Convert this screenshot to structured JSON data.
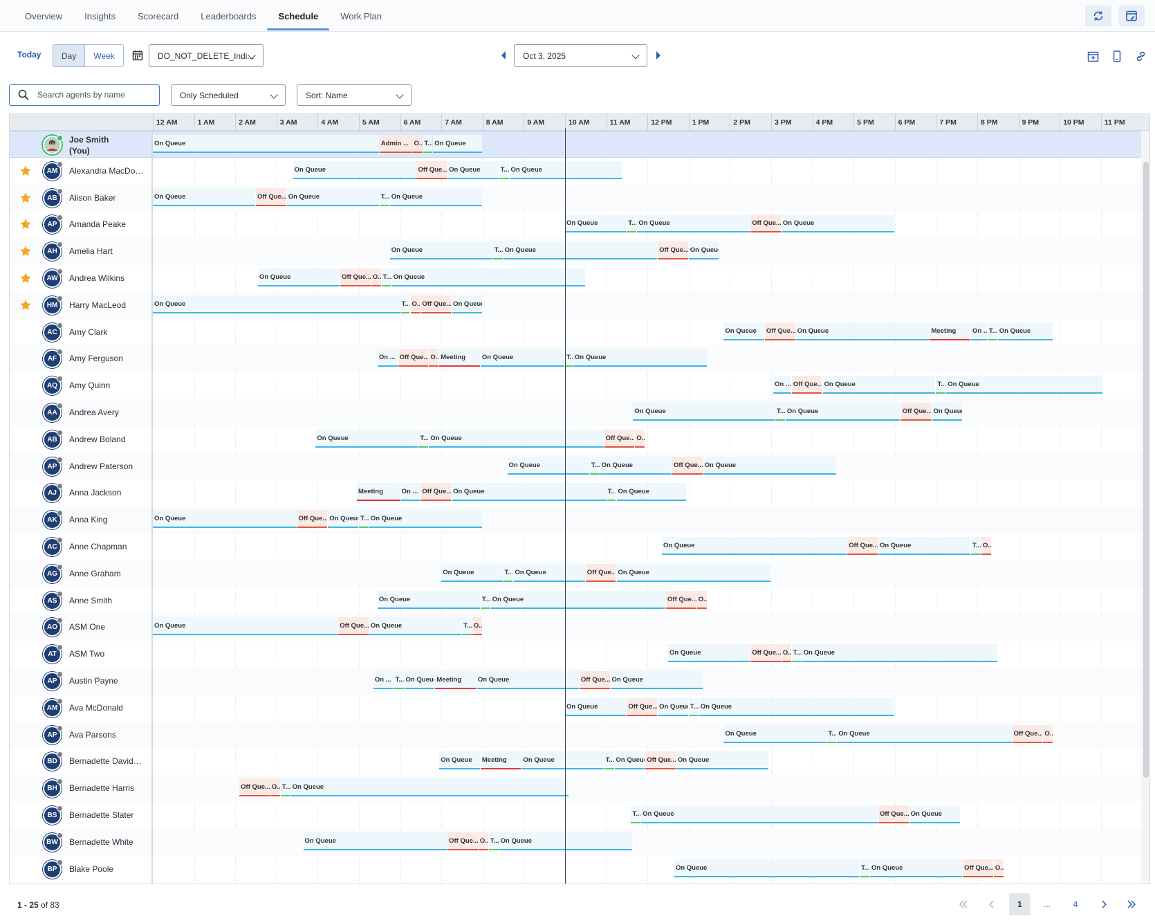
{
  "tabs": [
    {
      "label": "Overview"
    },
    {
      "label": "Insights"
    },
    {
      "label": "Scorecard"
    },
    {
      "label": "Leaderboards"
    },
    {
      "label": "Schedule",
      "active": true
    },
    {
      "label": "Work Plan"
    }
  ],
  "toolbar": {
    "today": "Today",
    "view_day": "Day",
    "view_week": "Week",
    "management_unit": "DO_NOT_DELETE_Indi...",
    "date": "Oct 3, 2025"
  },
  "filters": {
    "search_placeholder": "Search agents by name",
    "scheduled_filter": "Only Scheduled",
    "sort": "Sort: Name"
  },
  "hours": [
    "12 AM",
    "1 AM",
    "2 AM",
    "3 AM",
    "4 AM",
    "5 AM",
    "6 AM",
    "7 AM",
    "8 AM",
    "9 AM",
    "10 AM",
    "11 AM",
    "12 PM",
    "1 PM",
    "2 PM",
    "3 PM",
    "4 PM",
    "5 PM",
    "6 PM",
    "7 PM",
    "8 PM",
    "9 PM",
    "10 PM",
    "11 PM"
  ],
  "current_time_hour": 10.0,
  "activity_labels": {
    "q": "On Queue",
    "o": "Off Que...",
    "m": "Meeting",
    "t": "T...",
    "a": "Admin ...",
    "x": "O..."
  },
  "agents": [
    {
      "name": "Joe Smith (You)",
      "initials": "",
      "me": true,
      "fav": false,
      "segs": [
        [
          0,
          5.5,
          "q",
          "On Queue"
        ],
        [
          5.5,
          6.3,
          "a",
          "Admin ..."
        ],
        [
          6.3,
          6.55,
          "x",
          "O..."
        ],
        [
          6.55,
          6.8,
          "t",
          "T..."
        ],
        [
          6.8,
          8.0,
          "q",
          "On Queue"
        ]
      ]
    },
    {
      "name": "Alexandra MacDon...",
      "initials": "AM",
      "fav": true,
      "segs": [
        [
          3.4,
          6.4,
          "q",
          "On Queue"
        ],
        [
          6.4,
          7.15,
          "o",
          "Off Que..."
        ],
        [
          7.15,
          8.4,
          "q",
          "On Queue"
        ],
        [
          8.4,
          8.65,
          "t",
          "T..."
        ],
        [
          8.65,
          11.4,
          "q",
          "On Queue"
        ]
      ]
    },
    {
      "name": "Alison Baker",
      "initials": "AB",
      "fav": true,
      "segs": [
        [
          0,
          2.5,
          "q",
          "On Queue"
        ],
        [
          2.5,
          3.25,
          "o",
          "Off Que..."
        ],
        [
          3.25,
          5.5,
          "q",
          "On Queue"
        ],
        [
          5.5,
          5.75,
          "t",
          "T..."
        ],
        [
          5.75,
          8.0,
          "q",
          "On Queue"
        ]
      ]
    },
    {
      "name": "Amanda Peake",
      "initials": "AP",
      "fav": true,
      "segs": [
        [
          10.0,
          11.5,
          "q",
          "On Queue"
        ],
        [
          11.5,
          11.75,
          "t",
          "T..."
        ],
        [
          11.75,
          14.5,
          "q",
          "On Queue"
        ],
        [
          14.5,
          15.25,
          "o",
          "Off Que..."
        ],
        [
          15.25,
          18.0,
          "q",
          "On Queue"
        ]
      ]
    },
    {
      "name": "Amelia Hart",
      "initials": "AH",
      "fav": true,
      "segs": [
        [
          5.75,
          8.25,
          "q",
          "On Queue"
        ],
        [
          8.25,
          8.5,
          "t",
          "T..."
        ],
        [
          8.5,
          12.25,
          "q",
          "On Queue"
        ],
        [
          12.25,
          13.0,
          "o",
          "Off Que..."
        ],
        [
          13.0,
          13.75,
          "q",
          "On Queue"
        ]
      ]
    },
    {
      "name": "Andrea Wilkins",
      "initials": "AW",
      "fav": true,
      "segs": [
        [
          2.55,
          4.55,
          "q",
          "On Queue"
        ],
        [
          4.55,
          5.3,
          "o",
          "Off Que..."
        ],
        [
          5.3,
          5.55,
          "x",
          "O..."
        ],
        [
          5.55,
          5.8,
          "t",
          "T..."
        ],
        [
          5.8,
          10.5,
          "q",
          "On Queue"
        ]
      ]
    },
    {
      "name": "Harry MacLeod",
      "initials": "HM",
      "fav": true,
      "segs": [
        [
          0,
          6.0,
          "q",
          "On Queue"
        ],
        [
          6.0,
          6.25,
          "t",
          "T..."
        ],
        [
          6.25,
          6.5,
          "x",
          "O..."
        ],
        [
          6.5,
          7.25,
          "o",
          "Off Que..."
        ],
        [
          7.25,
          8.0,
          "q",
          "On Queue"
        ]
      ]
    },
    {
      "name": "Amy Clark",
      "initials": "AC",
      "fav": false,
      "segs": [
        [
          13.85,
          14.85,
          "q",
          "On Queue"
        ],
        [
          14.85,
          15.6,
          "o",
          "Off Que..."
        ],
        [
          15.6,
          18.85,
          "q",
          "On Queue"
        ],
        [
          18.85,
          19.85,
          "m",
          "Meeting"
        ],
        [
          19.85,
          20.25,
          "q",
          "On ..."
        ],
        [
          20.25,
          20.5,
          "t",
          "T..."
        ],
        [
          20.5,
          21.85,
          "q",
          "On Queue"
        ]
      ]
    },
    {
      "name": "Amy Ferguson",
      "initials": "AF",
      "fav": false,
      "segs": [
        [
          5.45,
          5.95,
          "q",
          "On ..."
        ],
        [
          5.95,
          6.7,
          "o",
          "Off Que..."
        ],
        [
          6.7,
          6.95,
          "x",
          "O..."
        ],
        [
          6.95,
          7.95,
          "m",
          "Meeting"
        ],
        [
          7.95,
          10.0,
          "q",
          "On Queue"
        ],
        [
          10.0,
          10.2,
          "t",
          "T..."
        ],
        [
          10.2,
          13.45,
          "q",
          "On Queue"
        ]
      ]
    },
    {
      "name": "Amy Quinn",
      "initials": "AQ",
      "fav": false,
      "segs": [
        [
          15.05,
          15.5,
          "q",
          "On ..."
        ],
        [
          15.5,
          16.25,
          "o",
          "Off Que..."
        ],
        [
          16.25,
          19.0,
          "q",
          "On Queue"
        ],
        [
          19.0,
          19.25,
          "t",
          "T..."
        ],
        [
          19.25,
          23.05,
          "q",
          "On Queue"
        ]
      ]
    },
    {
      "name": "Andrea Avery",
      "initials": "AA",
      "fav": false,
      "segs": [
        [
          11.65,
          15.1,
          "q",
          "On Queue"
        ],
        [
          15.1,
          15.35,
          "t",
          "T..."
        ],
        [
          15.35,
          18.15,
          "q",
          "On Queue"
        ],
        [
          18.15,
          18.9,
          "o",
          "Off Que..."
        ],
        [
          18.9,
          19.65,
          "q",
          "On Queue"
        ]
      ]
    },
    {
      "name": "Andrew Boland",
      "initials": "AB",
      "fav": false,
      "segs": [
        [
          3.95,
          6.45,
          "q",
          "On Queue"
        ],
        [
          6.45,
          6.7,
          "t",
          "T..."
        ],
        [
          6.7,
          10.95,
          "q",
          "On Queue"
        ],
        [
          10.95,
          11.7,
          "o",
          "Off Que..."
        ],
        [
          11.7,
          11.95,
          "x",
          "O..."
        ]
      ]
    },
    {
      "name": "Andrew Paterson",
      "initials": "AP",
      "fav": false,
      "segs": [
        [
          8.6,
          10.6,
          "q",
          "On Queue"
        ],
        [
          10.6,
          10.85,
          "t",
          "T..."
        ],
        [
          10.85,
          12.6,
          "q",
          "On Queue"
        ],
        [
          12.6,
          13.35,
          "o",
          "Off Que..."
        ],
        [
          13.35,
          16.6,
          "q",
          "On Queue"
        ]
      ]
    },
    {
      "name": "Anna Jackson",
      "initials": "AJ",
      "fav": false,
      "segs": [
        [
          4.95,
          6.0,
          "m",
          "Meeting"
        ],
        [
          6.0,
          6.5,
          "q",
          "On ..."
        ],
        [
          6.5,
          7.25,
          "o",
          "Off Que..."
        ],
        [
          7.25,
          11.0,
          "q",
          "On Queue"
        ],
        [
          11.0,
          11.25,
          "t",
          "T..."
        ],
        [
          11.25,
          12.95,
          "q",
          "On Queue"
        ]
      ]
    },
    {
      "name": "Anna King",
      "initials": "AK",
      "fav": false,
      "segs": [
        [
          0,
          3.5,
          "q",
          "On Queue"
        ],
        [
          3.5,
          4.25,
          "o",
          "Off Que..."
        ],
        [
          4.25,
          5.0,
          "q",
          "On Queue"
        ],
        [
          5.0,
          5.25,
          "t",
          "T..."
        ],
        [
          5.25,
          8.0,
          "q",
          "On Queue"
        ]
      ]
    },
    {
      "name": "Anne Chapman",
      "initials": "AC",
      "fav": false,
      "segs": [
        [
          12.35,
          16.85,
          "q",
          "On Queue"
        ],
        [
          16.85,
          17.6,
          "o",
          "Off Que..."
        ],
        [
          17.6,
          19.85,
          "q",
          "On Queue"
        ],
        [
          19.85,
          20.1,
          "t",
          "T..."
        ],
        [
          20.1,
          20.35,
          "x",
          "O..."
        ]
      ]
    },
    {
      "name": "Anne Graham",
      "initials": "AG",
      "fav": false,
      "segs": [
        [
          7.0,
          8.5,
          "q",
          "On Queue"
        ],
        [
          8.5,
          8.75,
          "t",
          "T..."
        ],
        [
          8.75,
          10.5,
          "q",
          "On Queue"
        ],
        [
          10.5,
          11.25,
          "o",
          "Off Que..."
        ],
        [
          11.25,
          15.0,
          "q",
          "On Queue"
        ]
      ]
    },
    {
      "name": "Anne Smith",
      "initials": "AS",
      "fav": false,
      "segs": [
        [
          5.45,
          7.95,
          "q",
          "On Queue"
        ],
        [
          7.95,
          8.2,
          "t",
          "T..."
        ],
        [
          8.2,
          12.45,
          "q",
          "On Queue"
        ],
        [
          12.45,
          13.2,
          "o",
          "Off Que..."
        ],
        [
          13.2,
          13.45,
          "x",
          "O..."
        ]
      ]
    },
    {
      "name": "ASM One",
      "initials": "AO",
      "fav": false,
      "segs": [
        [
          0,
          4.5,
          "q",
          "On Queue"
        ],
        [
          4.5,
          5.25,
          "o",
          "Off Que..."
        ],
        [
          5.25,
          7.5,
          "q",
          "On Queue"
        ],
        [
          7.5,
          7.75,
          "t",
          "T..."
        ],
        [
          7.75,
          8.0,
          "x",
          "O..."
        ]
      ]
    },
    {
      "name": "ASM Two",
      "initials": "AT",
      "fav": false,
      "segs": [
        [
          12.5,
          14.5,
          "q",
          "On Queue"
        ],
        [
          14.5,
          15.25,
          "o",
          "Off Que..."
        ],
        [
          15.25,
          15.5,
          "x",
          "O..."
        ],
        [
          15.5,
          15.75,
          "t",
          "T..."
        ],
        [
          15.75,
          20.5,
          "q",
          "On Queue"
        ]
      ]
    },
    {
      "name": "Austin Payne",
      "initials": "AP",
      "fav": false,
      "segs": [
        [
          5.35,
          5.85,
          "q",
          "On ..."
        ],
        [
          5.85,
          6.1,
          "t",
          "T..."
        ],
        [
          6.1,
          6.85,
          "q",
          "On Queue"
        ],
        [
          6.85,
          7.85,
          "m",
          "Meeting"
        ],
        [
          7.85,
          10.35,
          "q",
          "On Queue"
        ],
        [
          10.35,
          11.1,
          "o",
          "Off Que..."
        ],
        [
          11.1,
          13.35,
          "q",
          "On Queue"
        ]
      ]
    },
    {
      "name": "Ava McDonald",
      "initials": "AM",
      "fav": false,
      "segs": [
        [
          10.0,
          11.5,
          "q",
          "On Queue"
        ],
        [
          11.5,
          12.25,
          "o",
          "Off Que..."
        ],
        [
          12.25,
          13.0,
          "q",
          "On Queue"
        ],
        [
          13.0,
          13.25,
          "t",
          "T..."
        ],
        [
          13.25,
          18.0,
          "q",
          "On Queue"
        ]
      ]
    },
    {
      "name": "Ava Parsons",
      "initials": "AP",
      "fav": false,
      "segs": [
        [
          13.85,
          16.35,
          "q",
          "On Queue"
        ],
        [
          16.35,
          16.6,
          "t",
          "T..."
        ],
        [
          16.6,
          20.85,
          "q",
          "On Queue"
        ],
        [
          20.85,
          21.6,
          "o",
          "Off Que..."
        ],
        [
          21.6,
          21.85,
          "x",
          "O..."
        ]
      ]
    },
    {
      "name": "Bernadette Davidson",
      "initials": "BD",
      "fav": false,
      "segs": [
        [
          6.95,
          7.95,
          "q",
          "On Queue"
        ],
        [
          7.95,
          8.95,
          "m",
          "Meeting"
        ],
        [
          8.95,
          10.95,
          "q",
          "On Queue"
        ],
        [
          10.95,
          11.2,
          "t",
          "T..."
        ],
        [
          11.2,
          11.95,
          "q",
          "On Queue"
        ],
        [
          11.95,
          12.7,
          "o",
          "Off Que..."
        ],
        [
          12.7,
          14.95,
          "q",
          "On Queue"
        ]
      ]
    },
    {
      "name": "Bernadette Harris",
      "initials": "BH",
      "fav": false,
      "segs": [
        [
          2.1,
          2.85,
          "o",
          "Off Que..."
        ],
        [
          2.85,
          3.1,
          "x",
          "O..."
        ],
        [
          3.1,
          3.35,
          "t",
          "T..."
        ],
        [
          3.35,
          10.1,
          "q",
          "On Queue"
        ]
      ]
    },
    {
      "name": "Bernadette Slater",
      "initials": "BS",
      "fav": false,
      "segs": [
        [
          11.6,
          11.85,
          "t",
          "T..."
        ],
        [
          11.85,
          17.6,
          "q",
          "On Queue"
        ],
        [
          17.6,
          18.35,
          "o",
          "Off Que..."
        ],
        [
          18.35,
          19.6,
          "q",
          "On Queue"
        ]
      ]
    },
    {
      "name": "Bernadette White",
      "initials": "BW",
      "fav": false,
      "segs": [
        [
          3.65,
          7.15,
          "q",
          "On Queue"
        ],
        [
          7.15,
          7.9,
          "o",
          "Off Que..."
        ],
        [
          7.9,
          8.15,
          "x",
          "O..."
        ],
        [
          8.15,
          8.4,
          "t",
          "T..."
        ],
        [
          8.4,
          11.65,
          "q",
          "On Queue"
        ]
      ]
    },
    {
      "name": "Blake Poole",
      "initials": "BP",
      "fav": false,
      "segs": [
        [
          12.65,
          17.15,
          "q",
          "On Queue"
        ],
        [
          17.15,
          17.4,
          "t",
          "T..."
        ],
        [
          17.4,
          19.65,
          "q",
          "On Queue"
        ],
        [
          19.65,
          20.4,
          "o",
          "Off Que..."
        ],
        [
          20.4,
          20.65,
          "x",
          "O..."
        ]
      ]
    }
  ],
  "pagination": {
    "range": "1 - 25",
    "of_text": "of 83",
    "current_page": "1",
    "ellipsis": "...",
    "last_page": "4"
  }
}
